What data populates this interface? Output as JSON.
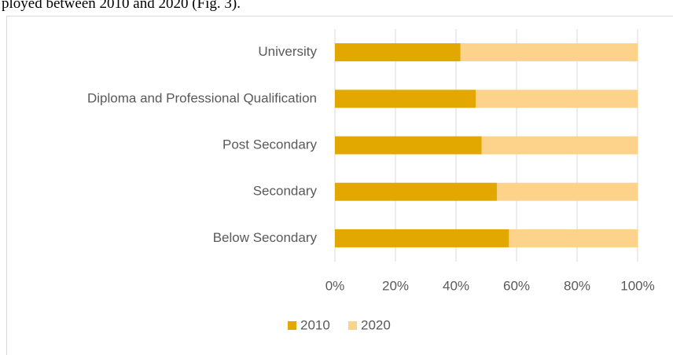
{
  "caption": "ployed between 2010 and 2020 (Fig. 3).",
  "chart_data": {
    "type": "stacked_barh",
    "categories": [
      "University",
      "Diploma and Professional Qualification",
      "Post Secondary",
      "Secondary",
      "Below Secondary"
    ],
    "series": [
      {
        "name": "2010",
        "color": "#e2a800",
        "values": [
          41.5,
          46.5,
          48.5,
          53.5,
          57.5
        ]
      },
      {
        "name": "2020",
        "color": "#fdd38b",
        "values": [
          58.5,
          53.5,
          51.5,
          46.5,
          42.5
        ]
      }
    ],
    "xlim": [
      0,
      100
    ],
    "xticks": [
      {
        "value": 0,
        "label": "0%"
      },
      {
        "value": 20,
        "label": "20%"
      },
      {
        "value": 40,
        "label": "40%"
      },
      {
        "value": 60,
        "label": "60%"
      },
      {
        "value": 80,
        "label": "80%"
      },
      {
        "value": 100,
        "label": "100%"
      }
    ],
    "grid": true,
    "legend": "bottom"
  }
}
